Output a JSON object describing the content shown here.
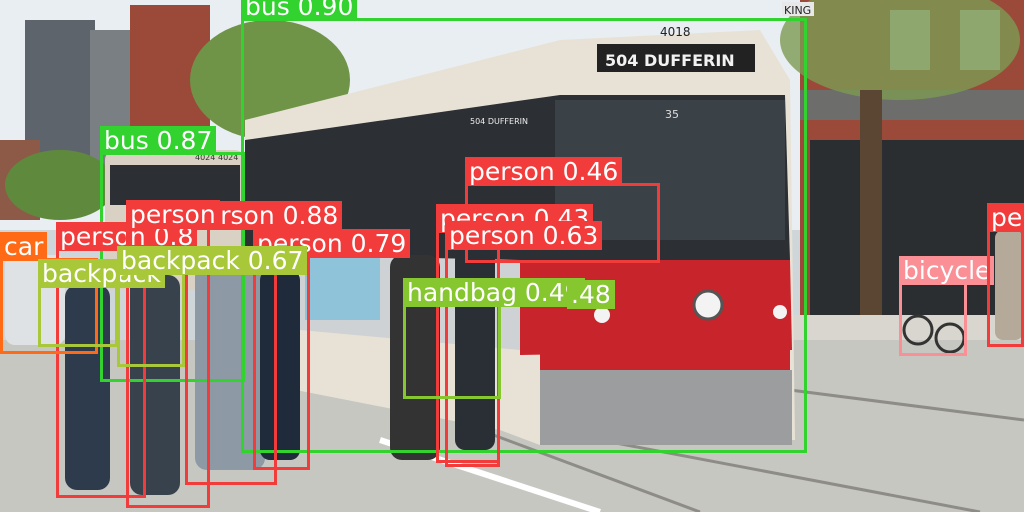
{
  "image": {
    "scene_text": {
      "destination_sign": "504  DUFFERIN",
      "fleet_number": "4018",
      "rear_sign": "504 DUFFERIN",
      "second_tram_number": "4024",
      "side_number": "35",
      "shop_sign": "KING"
    },
    "colors": {
      "sky": "#e9eef2",
      "street": "#c7c7c2",
      "sidewalk": "#d9d6d0",
      "tram_red": "#c8242b",
      "tram_cream": "#e8e2d6",
      "tram_dark": "#2c2f33",
      "brick": "#9b4a3a"
    }
  },
  "detections": [
    {
      "label": "bus 0.90",
      "class": "bus",
      "score": 0.9,
      "color": "#32d22f"
    },
    {
      "label": "bus 0.87",
      "class": "bus",
      "score": 0.87,
      "color": "#32d22f"
    },
    {
      "label": "person 0.46",
      "class": "person",
      "score": 0.46,
      "color": "#f23b3b"
    },
    {
      "label": "person 0.88",
      "class": "person",
      "score": 0.88,
      "color": "#f23b3b"
    },
    {
      "label": "person 0.79",
      "class": "person",
      "score": 0.79,
      "color": "#f23b3b"
    },
    {
      "label": "person 0.43",
      "class": "person",
      "score": 0.43,
      "color": "#f23b3b"
    },
    {
      "label": "person 0.63",
      "class": "person",
      "score": 0.63,
      "color": "#f23b3b"
    },
    {
      "label": "person 0.8",
      "class": "person",
      "score": 0.8,
      "color": "#f23b3b"
    },
    {
      "label": "person",
      "class": "person",
      "score": null,
      "color": "#f23b3b"
    },
    {
      "label": "car",
      "class": "car",
      "score": null,
      "color": "#ff6a17"
    },
    {
      "label": "backpack",
      "class": "backpack",
      "score": null,
      "color": "#a8c83a"
    },
    {
      "label": "backpack 0.67",
      "class": "backpack",
      "score": 0.67,
      "color": "#a8c83a"
    },
    {
      "label": "handbag 0.49",
      "class": "handbag",
      "score": 0.49,
      "color": "#86c62e"
    },
    {
      "label": ".48",
      "class": "handbag",
      "score": 0.48,
      "color": "#86c62e"
    },
    {
      "label": "bicycle",
      "class": "bicycle",
      "score": null,
      "color": "#fb8f96"
    },
    {
      "label": "pe",
      "class": "person",
      "score": null,
      "color": "#f23b3b"
    }
  ]
}
